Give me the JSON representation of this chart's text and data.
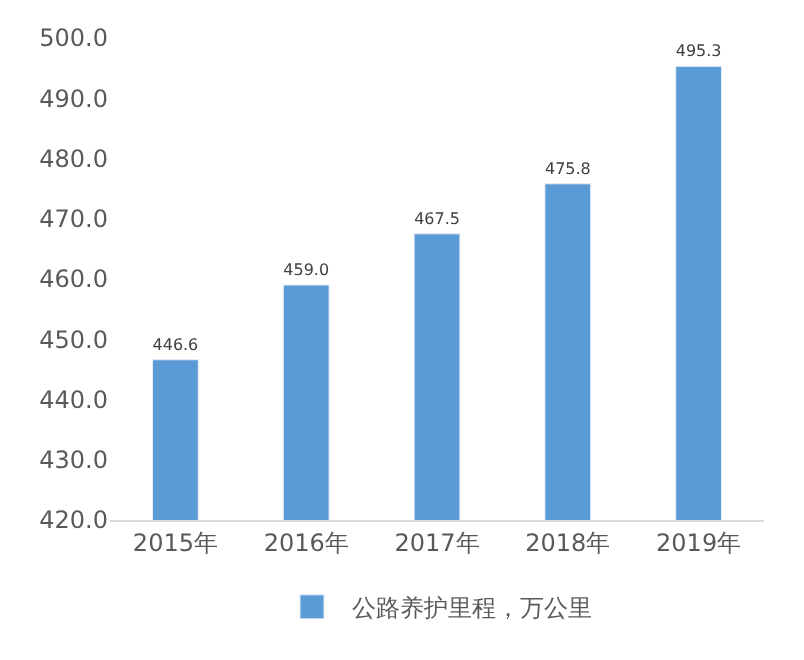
{
  "chart_data": {
    "type": "bar",
    "categories": [
      "2015年",
      "2016年",
      "2017年",
      "2018年",
      "2019年"
    ],
    "series": [
      {
        "name": "公路养护里程，万公里",
        "color": "#5b9bd5",
        "values": [
          446.6,
          459.0,
          467.5,
          475.8,
          495.3
        ],
        "value_labels": [
          "446.6",
          "459.0",
          "467.5",
          "475.8",
          "495.3"
        ]
      }
    ],
    "ylim": [
      420,
      500
    ],
    "yticks": [
      {
        "value": 420,
        "label": "420.0"
      },
      {
        "value": 430,
        "label": "430.0"
      },
      {
        "value": 440,
        "label": "440.0"
      },
      {
        "value": 450,
        "label": "450.0"
      },
      {
        "value": 460,
        "label": "460.0"
      },
      {
        "value": 470,
        "label": "470.0"
      },
      {
        "value": 480,
        "label": "480.0"
      },
      {
        "value": 490,
        "label": "490.0"
      },
      {
        "value": 500,
        "label": "500.0"
      }
    ],
    "grid": false,
    "legend": "bottom"
  }
}
